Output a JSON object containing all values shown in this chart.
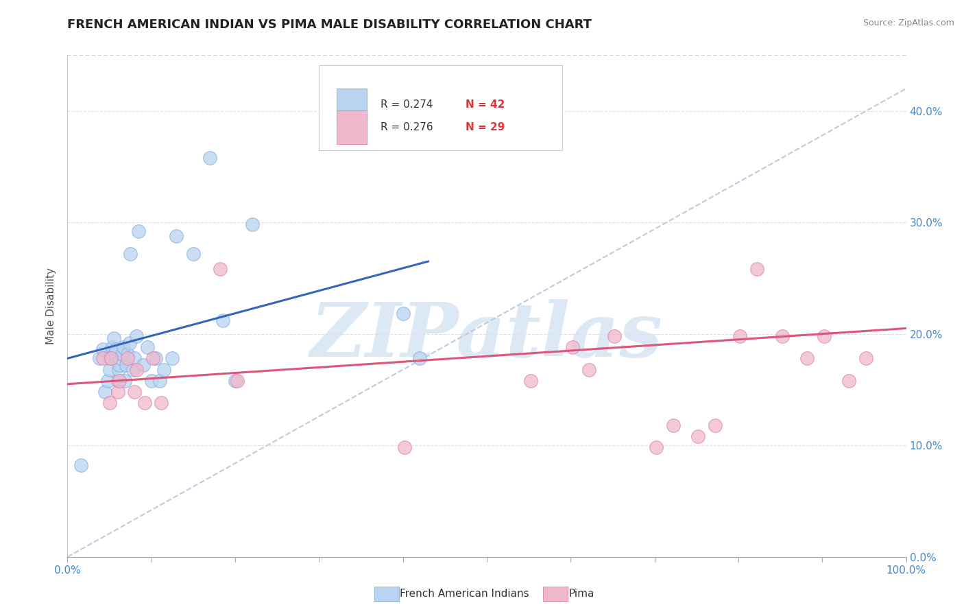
{
  "title": "FRENCH AMERICAN INDIAN VS PIMA MALE DISABILITY CORRELATION CHART",
  "source": "Source: ZipAtlas.com",
  "ylabel": "Male Disability",
  "xlim": [
    0.0,
    1.0
  ],
  "ylim": [
    0.0,
    0.45
  ],
  "yticks": [
    0.0,
    0.1,
    0.2,
    0.3,
    0.4
  ],
  "legend_r_blue": "R = 0.274",
  "legend_n_blue": "N = 42",
  "legend_r_pink": "R = 0.276",
  "legend_n_pink": "N = 29",
  "legend_label_blue": "French American Indians",
  "legend_label_pink": "Pima",
  "blue_color": "#b8d4f0",
  "pink_color": "#f0b8cc",
  "blue_edge_color": "#88aae0",
  "pink_edge_color": "#e080a8",
  "blue_line_color": "#3366bb",
  "pink_line_color": "#dd5577",
  "dashed_line_color": "#bbccdd",
  "title_color": "#222222",
  "source_color": "#888888",
  "axis_label_color": "#4488cc",
  "watermark_text": "ZIPatlas",
  "watermark_color": "#dde8f5",
  "grid_color": "#e0e0e0",
  "blue_scatter_x": [
    0.016,
    0.038,
    0.042,
    0.045,
    0.048,
    0.05,
    0.05,
    0.052,
    0.054,
    0.055,
    0.056,
    0.058,
    0.06,
    0.061,
    0.062,
    0.063,
    0.065,
    0.067,
    0.068,
    0.07,
    0.072,
    0.074,
    0.075,
    0.078,
    0.08,
    0.082,
    0.085,
    0.09,
    0.095,
    0.1,
    0.105,
    0.11,
    0.115,
    0.125,
    0.13,
    0.15,
    0.17,
    0.185,
    0.2,
    0.22,
    0.4,
    0.42
  ],
  "blue_scatter_y": [
    0.082,
    0.178,
    0.186,
    0.148,
    0.158,
    0.168,
    0.178,
    0.182,
    0.188,
    0.196,
    0.182,
    0.186,
    0.158,
    0.168,
    0.172,
    0.178,
    0.182,
    0.188,
    0.158,
    0.172,
    0.182,
    0.192,
    0.272,
    0.168,
    0.178,
    0.198,
    0.292,
    0.172,
    0.188,
    0.158,
    0.178,
    0.158,
    0.168,
    0.178,
    0.288,
    0.272,
    0.358,
    0.212,
    0.158,
    0.298,
    0.218,
    0.178
  ],
  "pink_scatter_x": [
    0.042,
    0.05,
    0.052,
    0.06,
    0.062,
    0.072,
    0.08,
    0.082,
    0.092,
    0.102,
    0.112,
    0.182,
    0.202,
    0.402,
    0.552,
    0.602,
    0.622,
    0.652,
    0.702,
    0.722,
    0.752,
    0.772,
    0.802,
    0.822,
    0.852,
    0.882,
    0.902,
    0.932,
    0.952
  ],
  "pink_scatter_y": [
    0.178,
    0.138,
    0.178,
    0.148,
    0.158,
    0.178,
    0.148,
    0.168,
    0.138,
    0.178,
    0.138,
    0.258,
    0.158,
    0.098,
    0.158,
    0.188,
    0.168,
    0.198,
    0.098,
    0.118,
    0.108,
    0.118,
    0.198,
    0.258,
    0.198,
    0.178,
    0.198,
    0.158,
    0.178
  ],
  "blue_trend_x": [
    0.0,
    0.43
  ],
  "blue_trend_y": [
    0.178,
    0.265
  ],
  "pink_trend_x": [
    0.0,
    1.0
  ],
  "pink_trend_y": [
    0.155,
    0.205
  ],
  "dashed_trend_x": [
    0.0,
    1.0
  ],
  "dashed_trend_y": [
    0.0,
    0.42
  ]
}
